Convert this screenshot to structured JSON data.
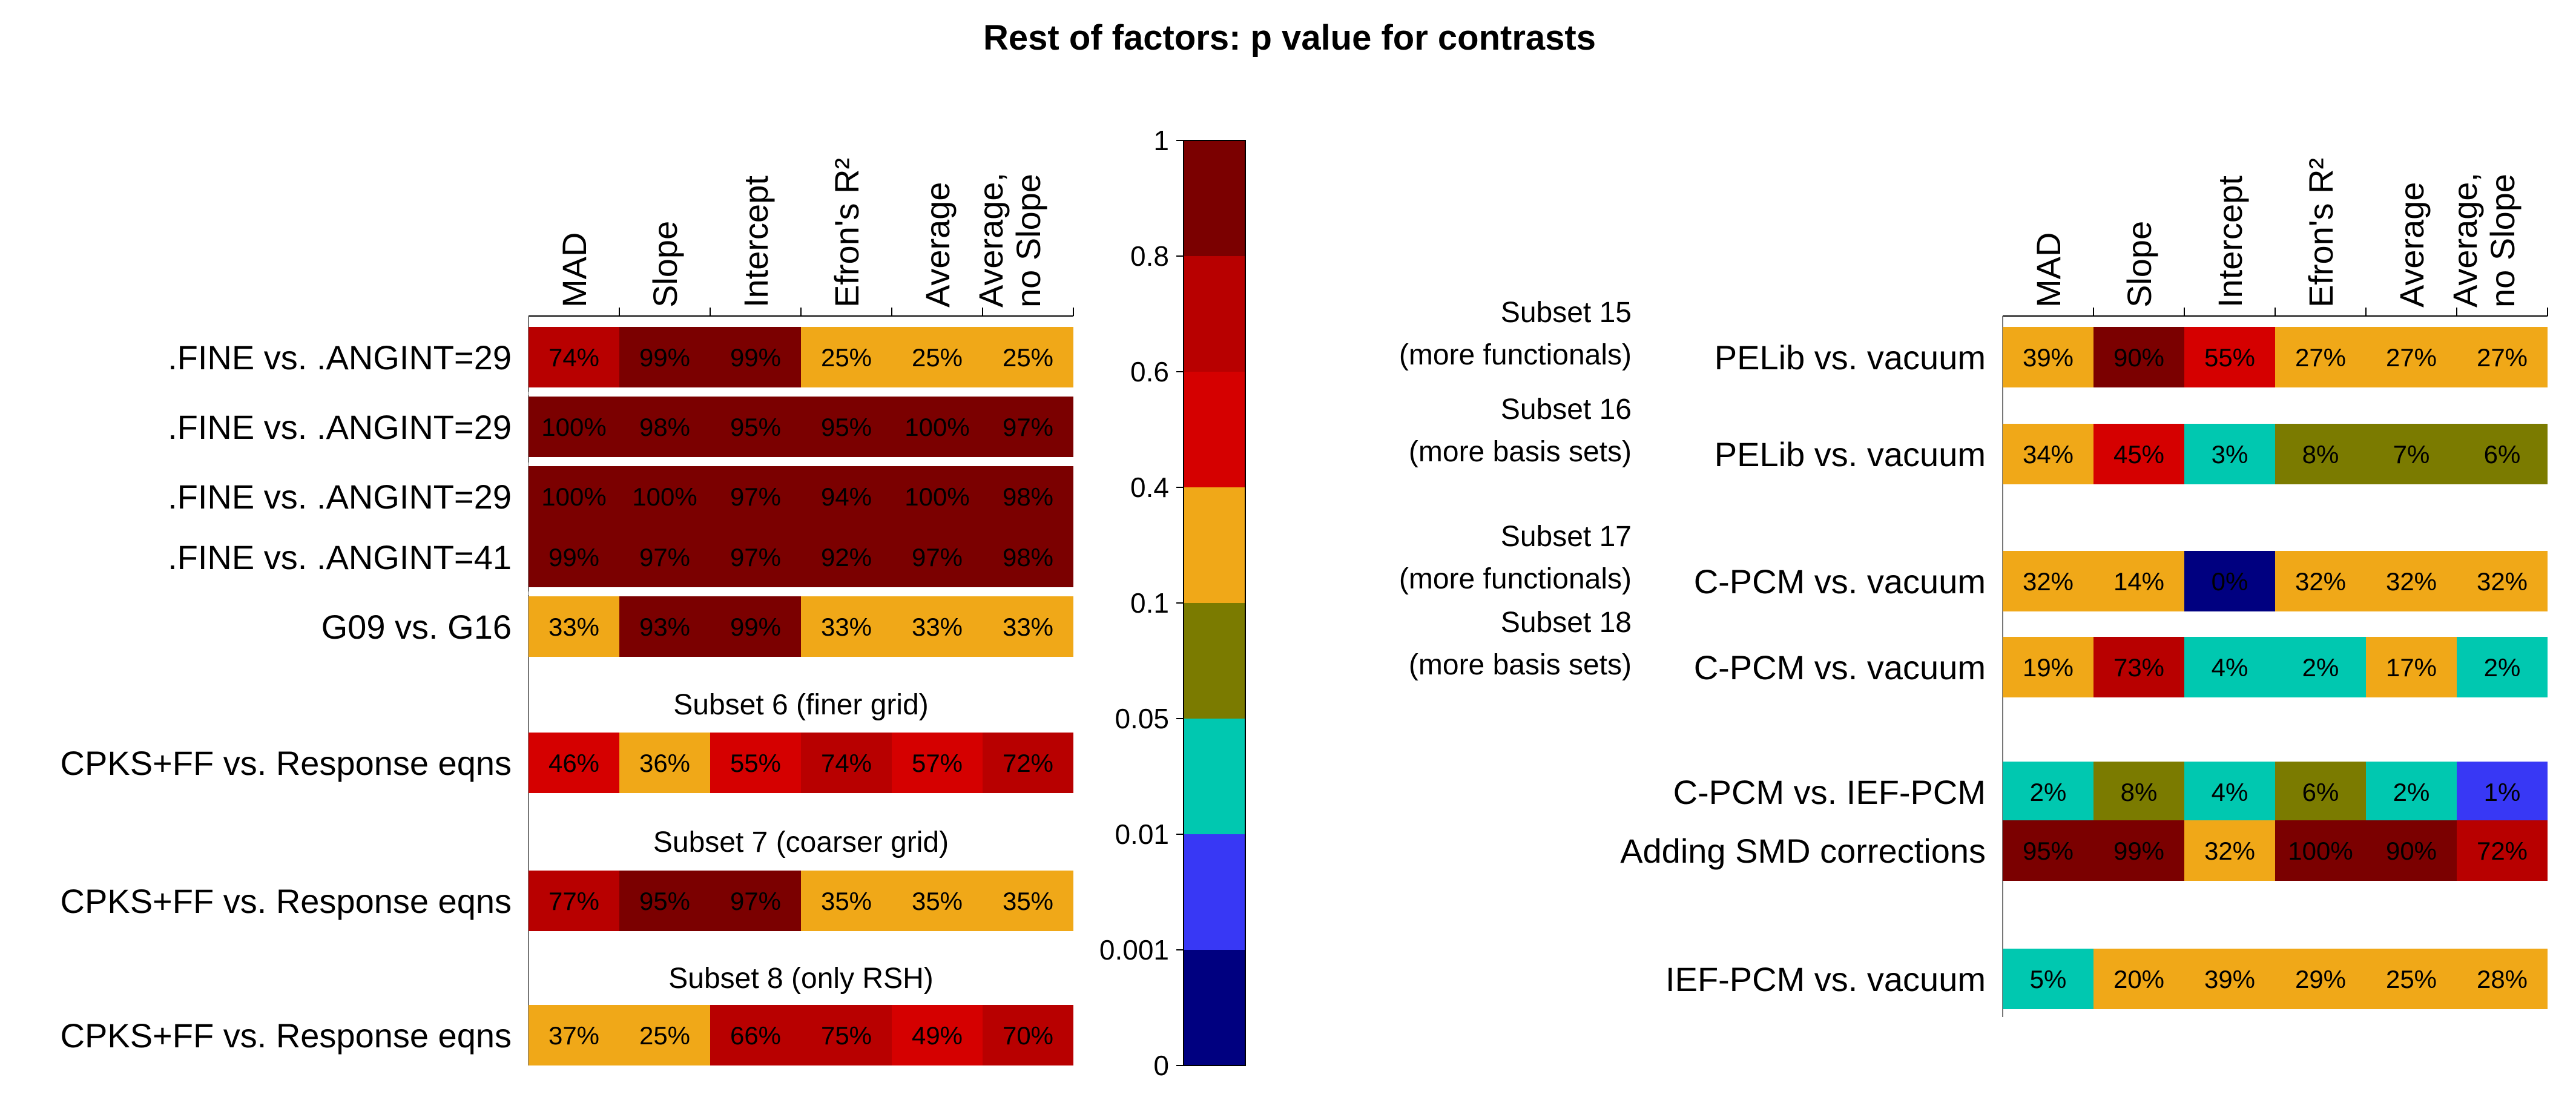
{
  "chart_data": {
    "type": "heatmap",
    "title": "Rest of factors: p value for  contrasts",
    "columns": [
      "MAD",
      "Slope",
      "Intercept",
      "Efron's R²",
      "Average,",
      "Average,\nno Slope"
    ],
    "column_labels": [
      [
        "MAD"
      ],
      [
        "Slope"
      ],
      [
        "Intercept"
      ],
      [
        "Efron's R²"
      ],
      [
        "Average"
      ],
      [
        "Average,",
        "no Slope"
      ]
    ],
    "colorbar": {
      "ticks": [
        "1",
        "0.8",
        "0.6",
        "0.4",
        "0.1",
        "0.05",
        "0.01",
        "0.001",
        "0"
      ],
      "colors": [
        "#7b0000",
        "#b80000",
        "#d50000",
        "#f0a818",
        "#7b7b00",
        "#00c8b0",
        "#3838f5",
        "#000080"
      ]
    },
    "left_panel": {
      "rows": [
        {
          "label": ".FINE vs. .ANGINT=29",
          "values": [
            74,
            99,
            99,
            25,
            25,
            25
          ]
        },
        {
          "label": ".FINE vs. .ANGINT=29",
          "values": [
            100,
            98,
            95,
            95,
            100,
            97
          ]
        },
        {
          "label": ".FINE vs. .ANGINT=29",
          "values": [
            100,
            100,
            97,
            94,
            100,
            98
          ]
        },
        {
          "label": ".FINE vs. .ANGINT=41",
          "values": [
            99,
            97,
            97,
            92,
            97,
            98
          ]
        },
        {
          "label": "G09 vs. G16",
          "values": [
            33,
            93,
            99,
            33,
            33,
            33
          ]
        },
        {
          "label": "CPKS+FF vs. Response eqns",
          "group": "Subset 6 (finer grid)",
          "values": [
            46,
            36,
            55,
            74,
            57,
            72
          ]
        },
        {
          "label": "CPKS+FF vs. Response eqns",
          "group": "Subset 7 (coarser grid)",
          "values": [
            77,
            95,
            97,
            35,
            35,
            35
          ]
        },
        {
          "label": "CPKS+FF vs. Response eqns",
          "group": "Subset 8 (only RSH)",
          "values": [
            37,
            25,
            66,
            75,
            49,
            70
          ]
        }
      ]
    },
    "right_panel": {
      "rows": [
        {
          "label": "PELib vs. vacuum",
          "group": [
            "Subset 15",
            "(more functionals)"
          ],
          "values": [
            39,
            90,
            55,
            27,
            27,
            27
          ]
        },
        {
          "label": "PELib vs. vacuum",
          "group": [
            "Subset 16",
            "(more basis sets)"
          ],
          "values": [
            34,
            45,
            3,
            8,
            7,
            6
          ]
        },
        {
          "label": "C-PCM vs. vacuum",
          "group": [
            "Subset 17",
            "(more functionals)"
          ],
          "values": [
            32,
            14,
            0,
            32,
            32,
            32
          ]
        },
        {
          "label": "C-PCM vs. vacuum",
          "group": [
            "Subset 18",
            "(more basis sets)"
          ],
          "values": [
            19,
            73,
            4,
            2,
            17,
            2
          ]
        },
        {
          "label": "C-PCM vs. IEF-PCM",
          "values": [
            2,
            8,
            4,
            6,
            2,
            1
          ]
        },
        {
          "label": "Adding SMD corrections",
          "values": [
            95,
            99,
            32,
            100,
            90,
            72
          ]
        },
        {
          "label": "IEF-PCM vs. vacuum",
          "values": [
            5,
            20,
            39,
            29,
            25,
            28
          ]
        }
      ]
    }
  }
}
